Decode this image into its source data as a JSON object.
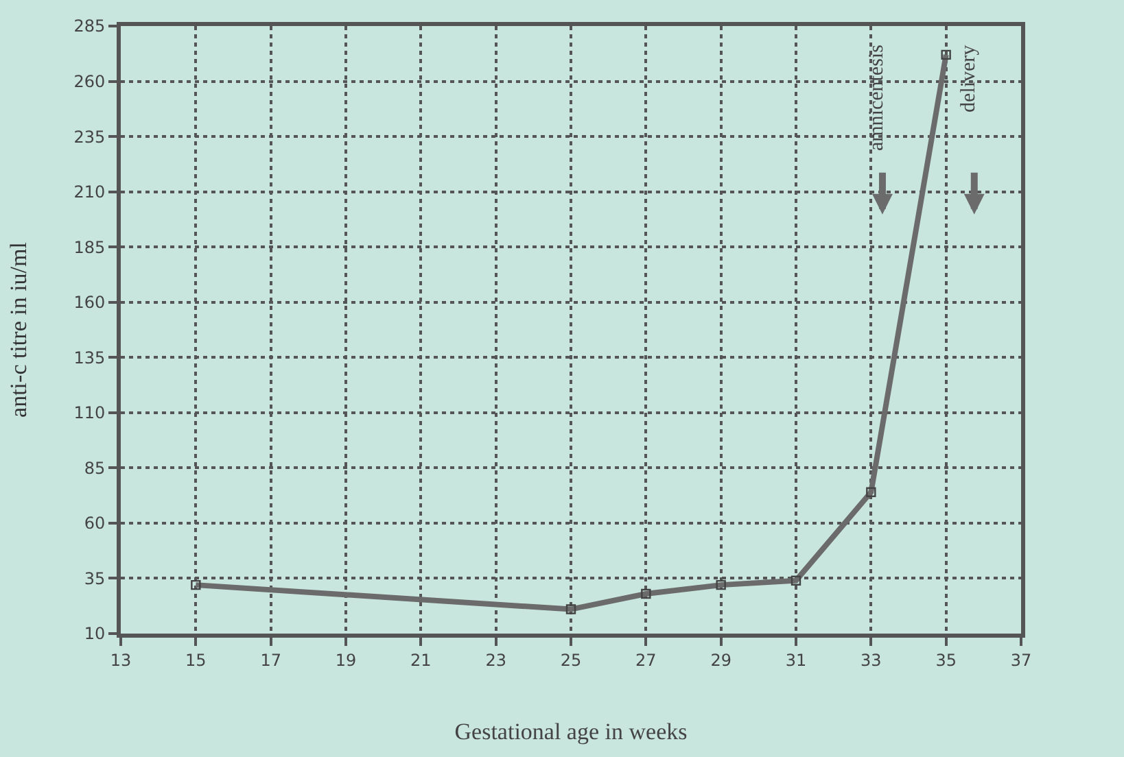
{
  "chart_data": {
    "type": "line",
    "xlabel": "Gestational age in weeks",
    "ylabel": "anti-c titre in iu/ml",
    "x": [
      15,
      25,
      27,
      29,
      31,
      33,
      35
    ],
    "series": [
      {
        "color": "#6b6b6b",
        "values": [
          32,
          21,
          28,
          32,
          34,
          74,
          272
        ]
      }
    ],
    "xlim": [
      13,
      37
    ],
    "xticks": [
      13,
      15,
      17,
      19,
      21,
      23,
      25,
      27,
      29,
      31,
      33,
      35,
      37
    ],
    "ylim": [
      10,
      285
    ],
    "yticks": [
      10,
      35,
      60,
      85,
      110,
      135,
      160,
      185,
      210,
      235,
      260,
      285
    ],
    "grid": true,
    "marker": "square",
    "line_style": "solid",
    "legend": false,
    "annotations": [
      "amnicentesis",
      "delivery"
    ]
  }
}
